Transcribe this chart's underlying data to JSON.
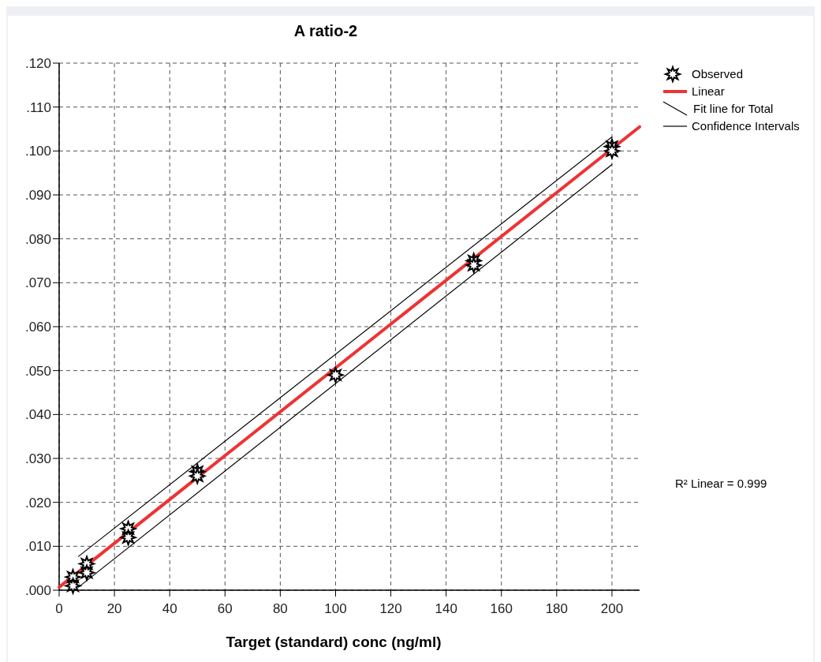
{
  "chart_data": {
    "type": "scatter",
    "title": "A ratio-2",
    "xlabel": "Target (standard) conc (ng/ml)",
    "xlim": [
      0,
      210
    ],
    "xticks": [
      0,
      20,
      40,
      60,
      80,
      100,
      120,
      140,
      160,
      180,
      200
    ],
    "ylim": [
      0,
      0.12
    ],
    "yticks": [
      {
        "value": 0,
        "label": ".000"
      },
      {
        "value": 0.01,
        "label": ".010"
      },
      {
        "value": 0.02,
        "label": ".020"
      },
      {
        "value": 0.03,
        "label": ".030"
      },
      {
        "value": 0.04,
        "label": ".040"
      },
      {
        "value": 0.05,
        "label": ".050"
      },
      {
        "value": 0.06,
        "label": ".060"
      },
      {
        "value": 0.07,
        "label": ".070"
      },
      {
        "value": 0.08,
        "label": ".080"
      },
      {
        "value": 0.09,
        "label": ".090"
      },
      {
        "value": 0.1,
        "label": ".100"
      },
      {
        "value": 0.11,
        "label": ".110"
      },
      {
        "value": 0.12,
        "label": ".120"
      }
    ],
    "grid": true,
    "legend": "top right",
    "series": [
      {
        "name": "Observed",
        "marker": "star",
        "color": "#000000",
        "x": [
          5,
          5,
          10,
          10,
          25,
          25,
          50,
          50,
          100,
          150,
          150,
          200,
          200
        ],
        "values": [
          0.003,
          0.001,
          0.006,
          0.004,
          0.014,
          0.012,
          0.027,
          0.026,
          0.049,
          0.075,
          0.074,
          0.101,
          0.1
        ]
      },
      {
        "name": "Linear",
        "type": "line",
        "marker": "none",
        "color": "#ee3333",
        "x": [
          0,
          210
        ],
        "values": [
          0.0007,
          0.1055
        ]
      },
      {
        "name": "Confidence Intervals",
        "type": "line",
        "marker": "none",
        "color": "#000000",
        "x": [
          7,
          200
        ],
        "values": [
          0.0077,
          0.1032
        ]
      },
      {
        "type": "line",
        "marker": "none",
        "color": "#000000",
        "x": [
          7,
          200
        ],
        "values": [
          0.0007,
          0.0969
        ]
      }
    ],
    "annotations": [
      "Fit line for Total",
      "R² Linear = 0.999"
    ]
  }
}
